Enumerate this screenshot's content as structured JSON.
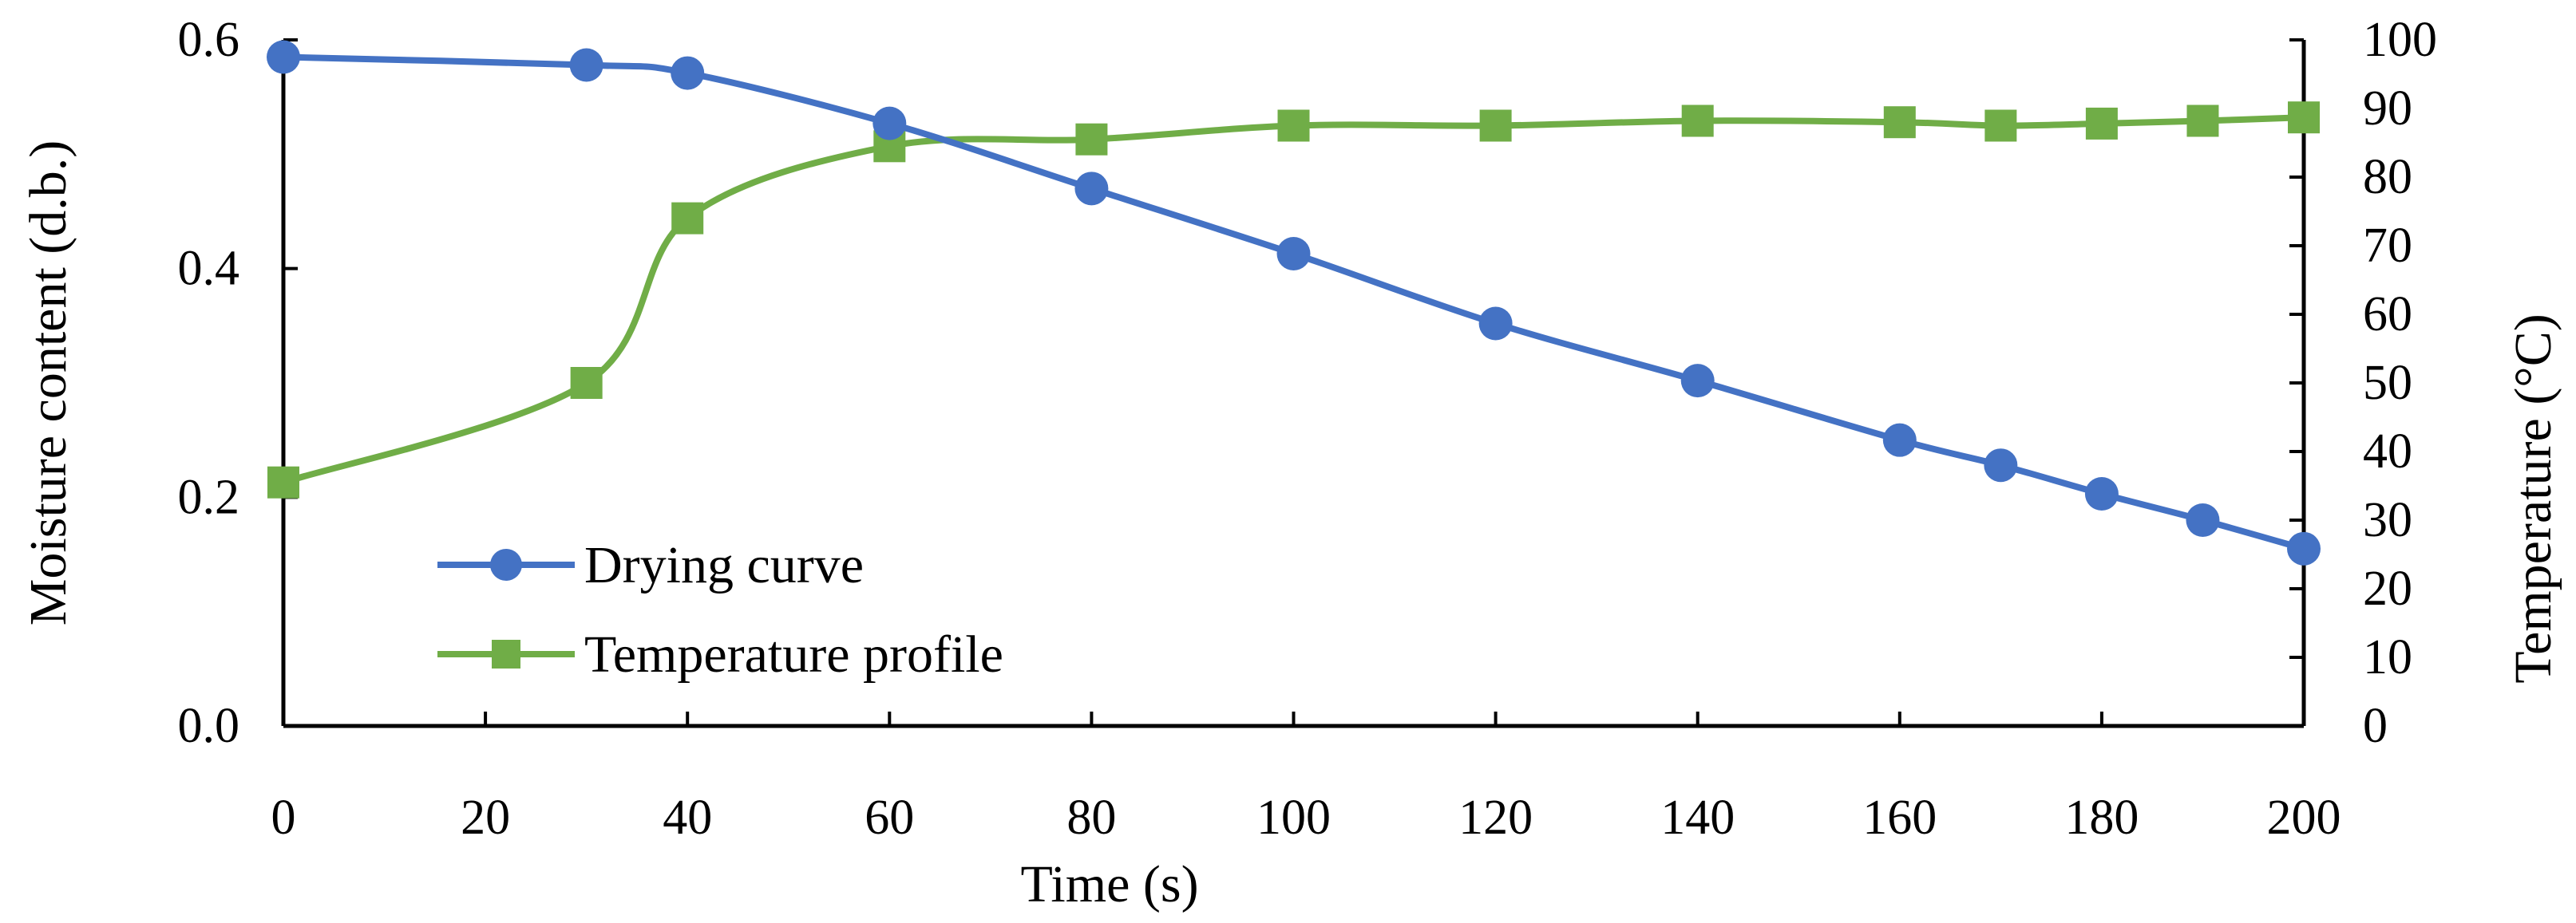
{
  "chart_data": {
    "type": "line",
    "title": "",
    "xlabel": "Time (s)",
    "ylabel_left": "Moisture content (d.b.)",
    "ylabel_right": "Temperature (°C)",
    "xlim": [
      0,
      200
    ],
    "ylim_left": [
      0.0,
      0.6
    ],
    "ylim_right": [
      0,
      100
    ],
    "x_ticks": [
      "0",
      "20",
      "40",
      "60",
      "80",
      "100",
      "120",
      "140",
      "160",
      "180",
      "200"
    ],
    "y_left_ticks": [
      "0.0",
      "0.2",
      "0.4",
      "0.6"
    ],
    "y_right_ticks": [
      "0",
      "10",
      "20",
      "30",
      "40",
      "50",
      "60",
      "70",
      "80",
      "90",
      "100"
    ],
    "grid": false,
    "legend_position": "bottom-left",
    "series": [
      {
        "name": "Drying curve",
        "axis": "left",
        "marker": "circle",
        "color": "#4472C4",
        "x": [
          0,
          30,
          40,
          60,
          80,
          100,
          120,
          140,
          160,
          170,
          180,
          190,
          200
        ],
        "values": [
          0.585,
          0.578,
          0.571,
          0.527,
          0.47,
          0.413,
          0.352,
          0.302,
          0.25,
          0.228,
          0.203,
          0.18,
          0.155
        ]
      },
      {
        "name": "Temperature profile",
        "axis": "right",
        "marker": "square",
        "color": "#70AD47",
        "x": [
          0,
          30,
          40,
          60,
          80,
          100,
          120,
          140,
          160,
          170,
          180,
          190,
          200
        ],
        "values": [
          35.5,
          50,
          74,
          84.5,
          85.5,
          87.5,
          87.5,
          88.2,
          88,
          87.5,
          87.8,
          88.2,
          88.7
        ]
      }
    ]
  }
}
